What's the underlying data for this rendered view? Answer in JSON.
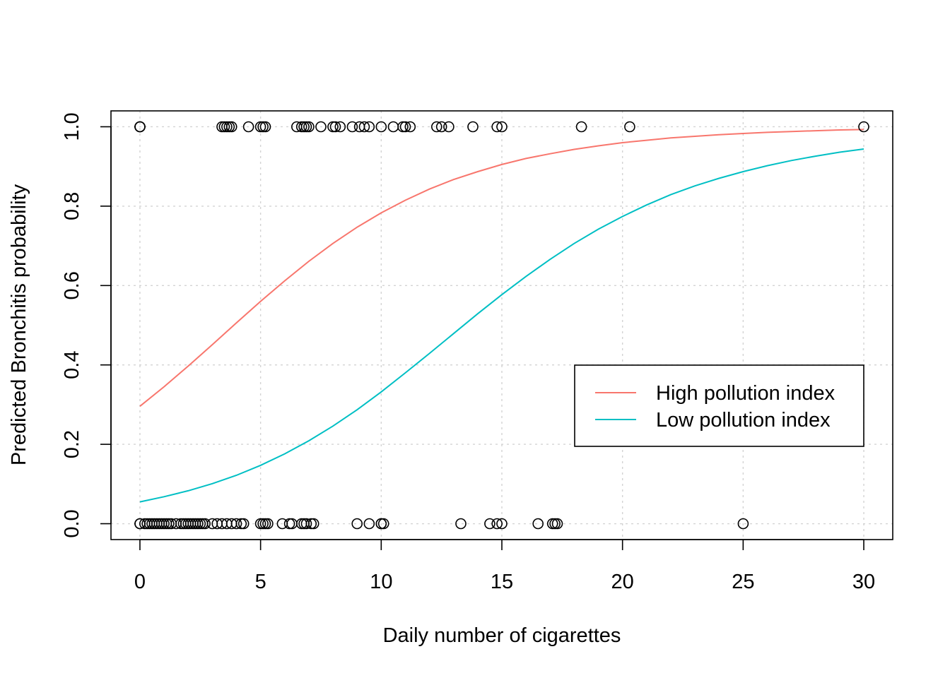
{
  "chart_data": {
    "type": "scatter",
    "title": "",
    "xlabel": "Daily number of cigarettes",
    "ylabel": "Predicted Bronchitis probability",
    "xlim": [
      -1.2,
      31.2
    ],
    "ylim": [
      -0.04,
      1.04
    ],
    "xticks": [
      0,
      5,
      10,
      15,
      20,
      25,
      30
    ],
    "xtick_labels": [
      "0",
      "5",
      "10",
      "15",
      "20",
      "25",
      "30"
    ],
    "yticks": [
      0,
      0.2,
      0.4,
      0.6,
      0.8,
      1
    ],
    "ytick_labels": [
      "0.0",
      "0.2",
      "0.4",
      "0.6",
      "0.8",
      "1.0"
    ],
    "grid": true,
    "legend_position": "center-right",
    "series": [
      {
        "name": "High pollution index",
        "kind": "line",
        "color": "#F8766D",
        "x": [
          0,
          1,
          2,
          3,
          4,
          5,
          6,
          7,
          8,
          9,
          10,
          11,
          12,
          13,
          14,
          15,
          16,
          17,
          18,
          19,
          20,
          21,
          22,
          23,
          24,
          25,
          26,
          27,
          28,
          29,
          30
        ],
        "y": [
          0.296,
          0.345,
          0.397,
          0.451,
          0.506,
          0.56,
          0.612,
          0.661,
          0.706,
          0.747,
          0.783,
          0.815,
          0.843,
          0.867,
          0.887,
          0.905,
          0.92,
          0.932,
          0.943,
          0.952,
          0.96,
          0.966,
          0.972,
          0.976,
          0.98,
          0.983,
          0.986,
          0.988,
          0.99,
          0.992,
          0.993
        ]
      },
      {
        "name": "Low pollution index",
        "kind": "line",
        "color": "#00BFC4",
        "x": [
          0,
          1,
          2,
          3,
          4,
          5,
          6,
          7,
          8,
          9,
          10,
          11,
          12,
          13,
          14,
          15,
          16,
          17,
          18,
          19,
          20,
          21,
          22,
          23,
          24,
          25,
          26,
          27,
          28,
          29,
          30
        ],
        "y": [
          0.055,
          0.068,
          0.083,
          0.101,
          0.122,
          0.147,
          0.176,
          0.209,
          0.246,
          0.287,
          0.332,
          0.38,
          0.429,
          0.479,
          0.529,
          0.577,
          0.623,
          0.666,
          0.706,
          0.742,
          0.774,
          0.803,
          0.829,
          0.851,
          0.87,
          0.887,
          0.902,
          0.915,
          0.926,
          0.936,
          0.944
        ]
      },
      {
        "kind": "points",
        "color": "#000000",
        "x": [
          0,
          0,
          0,
          3.4,
          3.5,
          3.6,
          3.7,
          3.8,
          4.5,
          5.0,
          5.1,
          5.2,
          6.5,
          6.7,
          6.8,
          6.9,
          7.0,
          7.5,
          8.0,
          8.1,
          8.3,
          8.8,
          9.1,
          9.3,
          9.5,
          10.0,
          10.5,
          10.9,
          11.0,
          11.2,
          12.3,
          12.5,
          12.8,
          13.8,
          14.8,
          15.0,
          18.3,
          20.3,
          30.0,
          0,
          0,
          0.2,
          0.3,
          0.4,
          0.5,
          0.6,
          0.7,
          0.8,
          0.9,
          1.0,
          1.1,
          1.2,
          1.3,
          1.5,
          1.7,
          1.8,
          1.9,
          2.0,
          2.1,
          2.2,
          2.3,
          2.4,
          2.5,
          2.6,
          2.7,
          3.0,
          3.2,
          3.4,
          3.6,
          3.8,
          4.0,
          4.2,
          4.3,
          5.0,
          5.1,
          5.2,
          5.3,
          5.9,
          6.2,
          6.3,
          6.7,
          6.8,
          6.9,
          7.1,
          7.2,
          9.0,
          9.5,
          10.0,
          10.0,
          10.1,
          13.3,
          14.5,
          14.8,
          15.0,
          16.5,
          17.1,
          17.2,
          17.3,
          25.0
        ],
        "y": [
          1,
          1,
          1,
          1,
          1,
          1,
          1,
          1,
          1,
          1,
          1,
          1,
          1,
          1,
          1,
          1,
          1,
          1,
          1,
          1,
          1,
          1,
          1,
          1,
          1,
          1,
          1,
          1,
          1,
          1,
          1,
          1,
          1,
          1,
          1,
          1,
          1,
          1,
          1,
          0,
          0,
          0,
          0,
          0,
          0,
          0,
          0,
          0,
          0,
          0,
          0,
          0,
          0,
          0,
          0,
          0,
          0,
          0,
          0,
          0,
          0,
          0,
          0,
          0,
          0,
          0,
          0,
          0,
          0,
          0,
          0,
          0,
          0,
          0,
          0,
          0,
          0,
          0,
          0,
          0,
          0,
          0,
          0,
          0,
          0,
          0,
          0,
          0,
          0,
          0,
          0,
          0,
          0,
          0,
          0,
          0,
          0,
          0,
          0
        ]
      }
    ]
  }
}
